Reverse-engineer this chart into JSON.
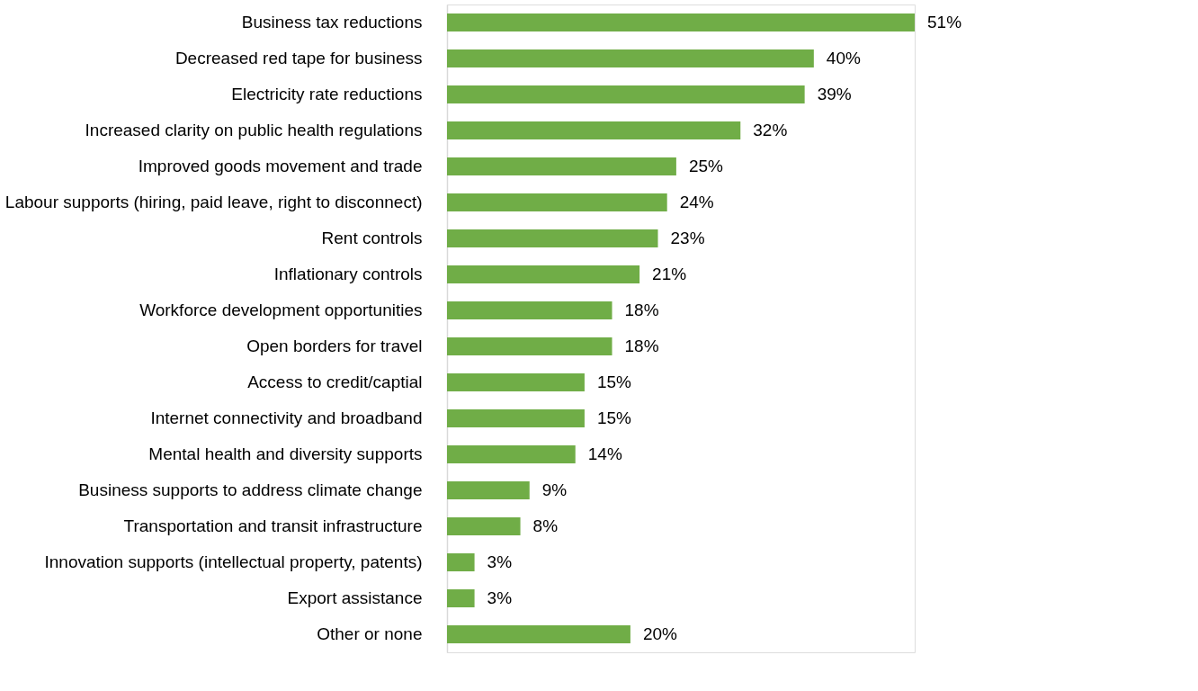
{
  "chart_data": {
    "type": "bar",
    "orientation": "horizontal",
    "categories": [
      "Business tax reductions",
      "Decreased red tape for business",
      "Electricity rate reductions",
      "Increased clarity on public health regulations",
      "Improved goods movement and trade",
      "Labour supports (hiring, paid leave, right to disconnect)",
      "Rent controls",
      "Inflationary controls",
      "Workforce development opportunities",
      "Open borders for travel",
      "Access to credit/captial",
      "Internet connectivity and broadband",
      "Mental health and diversity supports",
      "Business supports to address climate change",
      "Transportation and transit infrastructure",
      "Innovation supports (intellectual property, patents)",
      "Export assistance",
      "Other or none"
    ],
    "series": [
      {
        "color": "#70ad47",
        "values": [
          51,
          40,
          39,
          32,
          25,
          24,
          23,
          21,
          18,
          18,
          15,
          15,
          14,
          9,
          8,
          3,
          3,
          20
        ],
        "value_labels": [
          "51%",
          "40%",
          "39%",
          "32%",
          "25%",
          "24%",
          "23%",
          "21%",
          "18%",
          "18%",
          "15%",
          "15%",
          "14%",
          "9%",
          "8%",
          "3%",
          "3%",
          "20%"
        ]
      }
    ],
    "tick_labels": "y"
  }
}
